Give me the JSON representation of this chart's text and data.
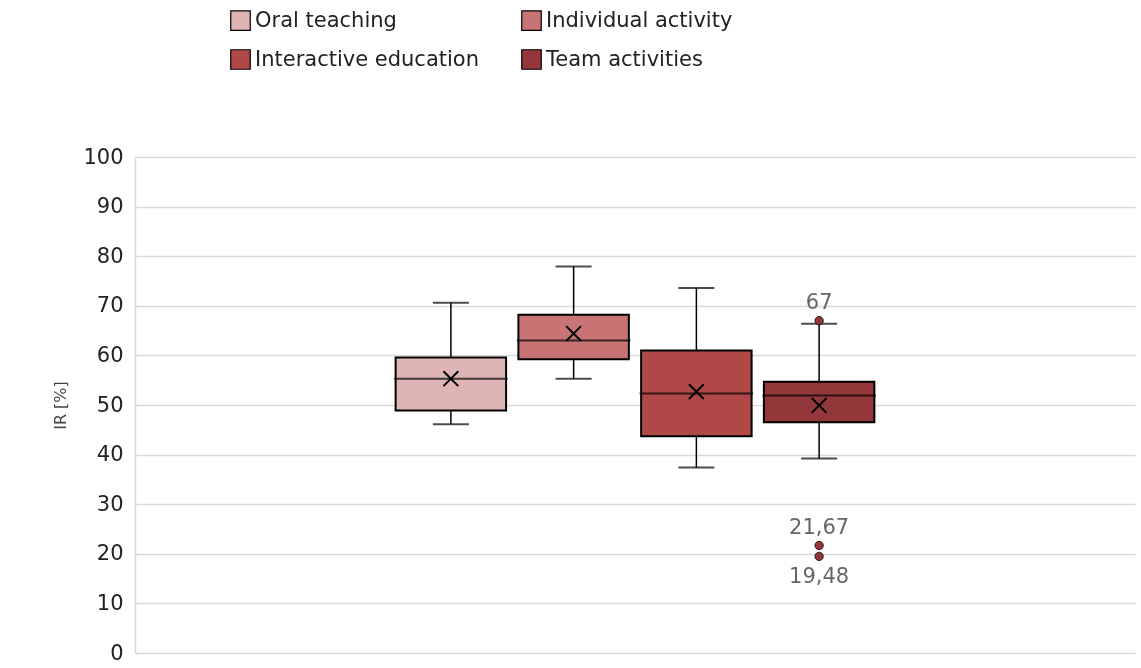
{
  "chart_data": {
    "type": "box",
    "categories": [
      null
    ],
    "ylabel": "IR [%]",
    "ylim": [
      0,
      100
    ],
    "yticks": [
      0,
      10,
      20,
      30,
      40,
      50,
      60,
      70,
      80,
      90,
      100
    ],
    "grid": "y",
    "legend": "top",
    "tick_labels": "y",
    "series": [
      {
        "name": "Oral teaching",
        "color": "#dfb4b4",
        "boxes": [
          {
            "low": 46.1,
            "q1": 48.9,
            "median": 55.3,
            "q3": 59.6,
            "high": 70.6,
            "mean": 55.3
          }
        ]
      },
      {
        "name": "Individual activity",
        "color": "#c87474",
        "boxes": [
          {
            "low": 55.3,
            "q1": 59.2,
            "median": 63,
            "q3": 68.2,
            "high": 77.9,
            "mean": 64.4
          }
        ]
      },
      {
        "name": "Interactive education",
        "color": "#b04848",
        "boxes": [
          {
            "low": 37.4,
            "q1": 43.7,
            "median": 52.3,
            "q3": 61,
            "high": 73.6,
            "mean": 52.7
          }
        ]
      },
      {
        "name": "Team activities",
        "color": "#93373a",
        "boxes": [
          {
            "low": 39.2,
            "q1": 46.5,
            "median": 51.9,
            "q3": 54.7,
            "high": 66.4,
            "mean": 49.9,
            "outliers": [
              67,
              21.67,
              19.48
            ]
          }
        ]
      }
    ],
    "annotations": [
      "67",
      "21,67",
      "19,48"
    ]
  }
}
